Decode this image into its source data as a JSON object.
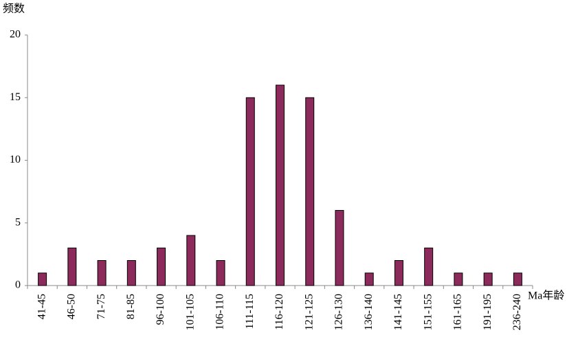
{
  "chart_data": {
    "type": "bar",
    "y_label": "频数",
    "x_label": "Ma年龄",
    "categories": [
      "41-45",
      "46-50",
      "71-75",
      "81-85",
      "96-100",
      "101-105",
      "106-110",
      "111-115",
      "116-120",
      "121-125",
      "126-130",
      "136-140",
      "141-145",
      "151-155",
      "161-165",
      "191-195",
      "236-240"
    ],
    "values": [
      1,
      3,
      2,
      2,
      3,
      4,
      2,
      15,
      16,
      15,
      6,
      1,
      2,
      3,
      1,
      1,
      1
    ],
    "color": "#8b2a5b",
    "ylim": [
      0,
      20
    ],
    "yticks": [
      0,
      5,
      10,
      15,
      20
    ],
    "grid": false
  }
}
